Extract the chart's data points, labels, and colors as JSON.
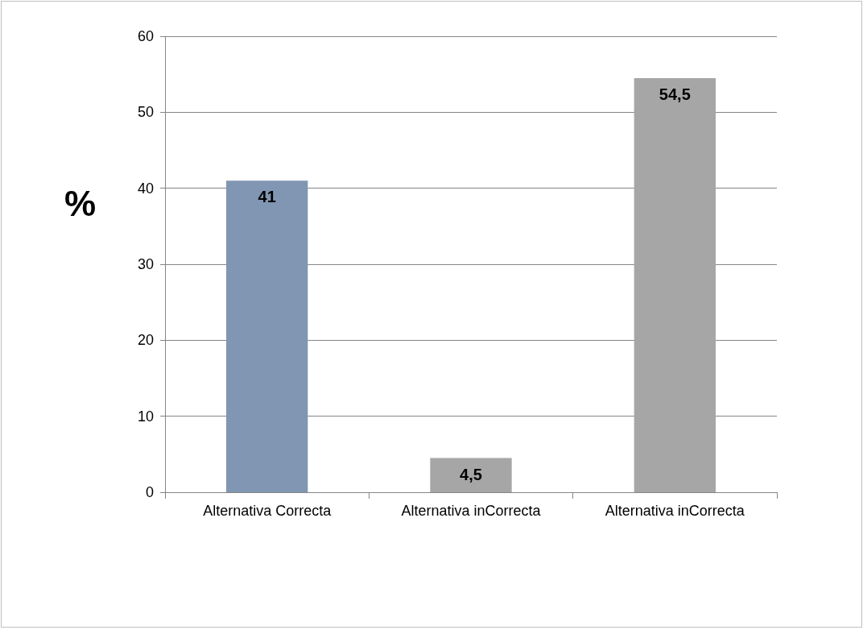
{
  "chart_data": {
    "type": "bar",
    "ylabel": "%",
    "categories": [
      "Alternativa Correcta",
      "Alternativa inCorrecta",
      "Alternativa inCorrecta"
    ],
    "values": [
      41,
      4.5,
      54.5
    ],
    "colors": [
      "#8096b2",
      "#a6a6a6",
      "#a6a6a6"
    ],
    "value_labels": [
      "41",
      "4,5",
      "54,5"
    ],
    "ylim": [
      0,
      60
    ],
    "yticks": [
      0,
      10,
      20,
      30,
      40,
      50,
      60
    ],
    "grid": "y"
  }
}
